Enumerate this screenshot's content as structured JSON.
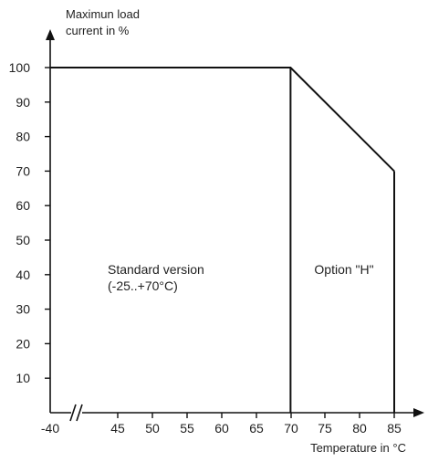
{
  "chart_data": {
    "type": "line",
    "ylabel": [
      "Maximun load",
      "current in %"
    ],
    "xlabel": "Temperature in °C",
    "x_ticks": [
      "-40",
      "45",
      "50",
      "55",
      "60",
      "65",
      "70",
      "75",
      "80",
      "85"
    ],
    "y_ticks": [
      10,
      20,
      30,
      40,
      50,
      60,
      70,
      80,
      90,
      100
    ],
    "xlim": [
      40,
      90
    ],
    "ylim": [
      0,
      110
    ],
    "axis_break": "between -40 and 45",
    "series": [
      {
        "x": [
          -40,
          70,
          85
        ],
        "y": [
          100,
          100,
          70
        ]
      }
    ],
    "region_lines": [
      {
        "x": 70,
        "y_top": 100
      },
      {
        "x": 85,
        "y_top": 70
      }
    ],
    "regions": [
      {
        "label": [
          "Standard version",
          "(-25..+70°C)"
        ]
      },
      {
        "label": [
          "Option \"H\""
        ]
      }
    ],
    "colors": {
      "line": "#111111",
      "text": "#222222"
    }
  }
}
